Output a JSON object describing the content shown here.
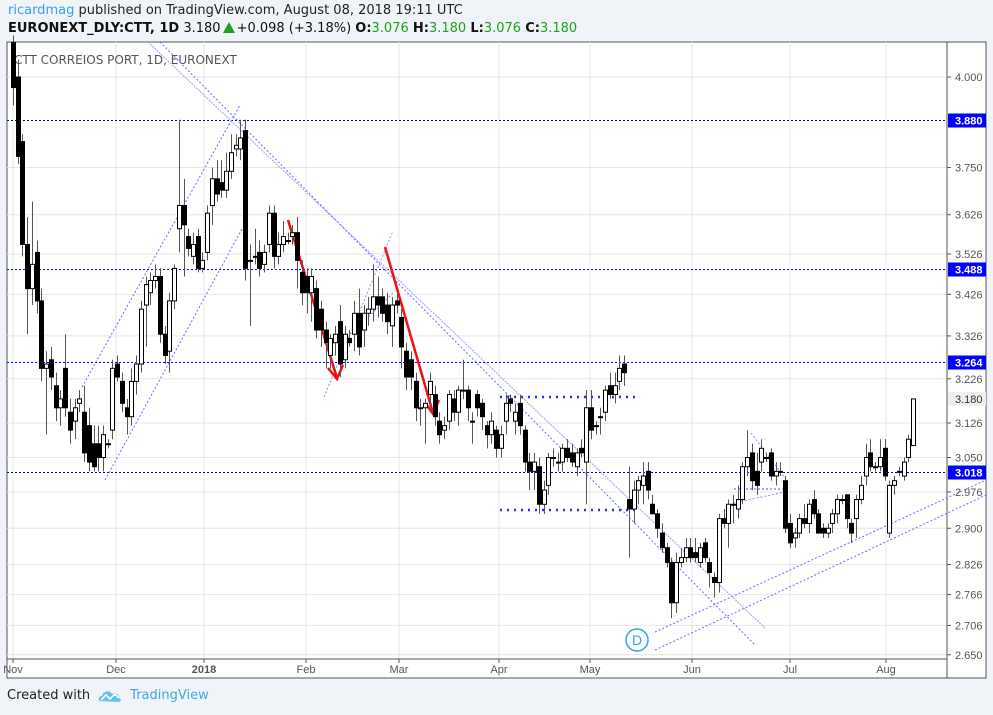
{
  "header": {
    "author": "ricardmag",
    "published": "published on TradingView.com, August 08, 2018 19:11 UTC",
    "symbol": "EURONEXT_DLY:CTT, 1D",
    "last": "3.180",
    "change": "+0.098 (+3.18%)",
    "o_label": "O:",
    "o": "3.076",
    "h_label": "H:",
    "h": "3.180",
    "l_label": "L:",
    "l": "3.076",
    "c_label": "C:",
    "c": "3.180",
    "up_color": "#1fa31f"
  },
  "footer": {
    "created_with": "Created with",
    "brand": "TradingView",
    "brand_icon": "tradingview-cloud-logo"
  },
  "chart_data": {
    "type": "candlestick",
    "title": "CTT CORREIOS PORT, 1D, EURONEXT",
    "y_scale": "log",
    "ylim": [
      2.642,
      4.101
    ],
    "grid": true,
    "y_ticks": [
      "4.000",
      "3.750",
      "3.626",
      "3.526",
      "3.426",
      "3.326",
      "3.226",
      "3.126",
      "3.050",
      "2.976",
      "2.900",
      "2.826",
      "2.766",
      "2.706",
      "2.650"
    ],
    "y_tick_values": [
      4.0,
      3.75,
      3.626,
      3.526,
      3.426,
      3.326,
      3.226,
      3.126,
      3.05,
      2.976,
      2.9,
      2.826,
      2.766,
      2.706,
      2.65
    ],
    "x_ticks": [
      "Nov",
      "Dec",
      "2018",
      "Feb",
      "Mar",
      "Apr",
      "May",
      "Jun",
      "Jul",
      "Aug"
    ],
    "levels": [
      {
        "value": 3.88,
        "label": "3.880"
      },
      {
        "value": 3.488,
        "label": "3.488"
      },
      {
        "value": 3.264,
        "label": "3.264"
      },
      {
        "value": 3.018,
        "label": "3.018"
      }
    ],
    "last_price": {
      "value": 3.18,
      "label": "3.180"
    },
    "level_color": "#0000ff",
    "annotation_marker": "D",
    "ohlc": [
      [
        4.1,
        4.12,
        3.92,
        3.97
      ],
      [
        4.0,
        4.05,
        3.76,
        3.78
      ],
      [
        3.82,
        3.84,
        3.52,
        3.55
      ],
      [
        3.55,
        3.62,
        3.33,
        3.44
      ],
      [
        3.44,
        3.66,
        3.4,
        3.5
      ],
      [
        3.53,
        3.56,
        3.38,
        3.41
      ],
      [
        3.41,
        3.44,
        3.22,
        3.25
      ],
      [
        3.25,
        3.29,
        3.1,
        3.26
      ],
      [
        3.27,
        3.3,
        3.2,
        3.23
      ],
      [
        3.21,
        3.24,
        3.13,
        3.16
      ],
      [
        3.16,
        3.2,
        3.12,
        3.18
      ],
      [
        3.25,
        3.33,
        3.14,
        3.16
      ],
      [
        3.15,
        3.18,
        3.08,
        3.11
      ],
      [
        3.13,
        3.18,
        3.09,
        3.16
      ],
      [
        3.17,
        3.2,
        3.15,
        3.18
      ],
      [
        3.15,
        3.21,
        3.04,
        3.06
      ],
      [
        3.12,
        3.16,
        3.02,
        3.04
      ],
      [
        3.08,
        3.12,
        3.02,
        3.03
      ],
      [
        3.08,
        3.12,
        3.02,
        3.05
      ],
      [
        3.05,
        3.12,
        3.02,
        3.1
      ],
      [
        3.08,
        3.09,
        3.07,
        3.08
      ],
      [
        3.11,
        3.27,
        3.09,
        3.25
      ],
      [
        3.26,
        3.28,
        3.22,
        3.23
      ],
      [
        3.22,
        3.24,
        3.15,
        3.17
      ],
      [
        3.16,
        3.18,
        3.1,
        3.14
      ],
      [
        3.14,
        3.25,
        3.12,
        3.22
      ],
      [
        3.22,
        3.28,
        3.19,
        3.26
      ],
      [
        3.26,
        3.41,
        3.24,
        3.39
      ],
      [
        3.4,
        3.47,
        3.3,
        3.45
      ],
      [
        3.43,
        3.48,
        3.4,
        3.46
      ],
      [
        3.46,
        3.5,
        3.44,
        3.47
      ],
      [
        3.47,
        3.49,
        3.31,
        3.33
      ],
      [
        3.33,
        3.35,
        3.26,
        3.28
      ],
      [
        3.29,
        3.43,
        3.24,
        3.41
      ],
      [
        3.41,
        3.5,
        3.39,
        3.49
      ],
      [
        3.59,
        3.88,
        3.53,
        3.65
      ],
      [
        3.65,
        3.72,
        3.47,
        3.6
      ],
      [
        3.57,
        3.59,
        3.52,
        3.54
      ],
      [
        3.52,
        3.58,
        3.5,
        3.55
      ],
      [
        3.57,
        3.59,
        3.48,
        3.49
      ],
      [
        3.49,
        3.53,
        3.48,
        3.51
      ],
      [
        3.53,
        3.65,
        3.51,
        3.63
      ],
      [
        3.65,
        3.75,
        3.6,
        3.72
      ],
      [
        3.72,
        3.77,
        3.66,
        3.68
      ],
      [
        3.71,
        3.77,
        3.67,
        3.69
      ],
      [
        3.69,
        3.79,
        3.67,
        3.74
      ],
      [
        3.74,
        3.84,
        3.72,
        3.79
      ],
      [
        3.8,
        3.84,
        3.78,
        3.81
      ],
      [
        3.8,
        3.88,
        3.77,
        3.83
      ],
      [
        3.85,
        3.88,
        3.46,
        3.49
      ],
      [
        3.51,
        3.55,
        3.35,
        3.51
      ],
      [
        3.52,
        3.59,
        3.5,
        3.52
      ],
      [
        3.53,
        3.56,
        3.47,
        3.49
      ],
      [
        3.5,
        3.55,
        3.48,
        3.53
      ],
      [
        3.55,
        3.65,
        3.53,
        3.63
      ],
      [
        3.63,
        3.65,
        3.49,
        3.52
      ],
      [
        3.52,
        3.58,
        3.5,
        3.55
      ],
      [
        3.55,
        3.61,
        3.53,
        3.57
      ],
      [
        3.56,
        3.58,
        3.55,
        3.56
      ],
      [
        3.57,
        3.6,
        3.55,
        3.58
      ],
      [
        3.58,
        3.62,
        3.44,
        3.51
      ],
      [
        3.48,
        3.51,
        3.4,
        3.43
      ],
      [
        3.47,
        3.49,
        3.38,
        3.43
      ],
      [
        3.43,
        3.49,
        3.36,
        3.47
      ],
      [
        3.44,
        3.46,
        3.32,
        3.34
      ],
      [
        3.39,
        3.41,
        3.3,
        3.34
      ],
      [
        3.34,
        3.36,
        3.25,
        3.31
      ],
      [
        3.28,
        3.33,
        3.25,
        3.32
      ],
      [
        3.31,
        3.35,
        3.28,
        3.33
      ],
      [
        3.36,
        3.4,
        3.23,
        3.26
      ],
      [
        3.27,
        3.35,
        3.25,
        3.33
      ],
      [
        3.32,
        3.34,
        3.3,
        3.31
      ],
      [
        3.33,
        3.41,
        3.29,
        3.38
      ],
      [
        3.38,
        3.44,
        3.28,
        3.3
      ],
      [
        3.34,
        3.4,
        3.3,
        3.38
      ],
      [
        3.38,
        3.42,
        3.35,
        3.39
      ],
      [
        3.39,
        3.5,
        3.36,
        3.42
      ],
      [
        3.42,
        3.47,
        3.37,
        3.4
      ],
      [
        3.42,
        3.44,
        3.36,
        3.38
      ],
      [
        3.4,
        3.43,
        3.33,
        3.36
      ],
      [
        3.35,
        3.42,
        3.3,
        3.4
      ],
      [
        3.41,
        3.43,
        3.38,
        3.4
      ],
      [
        3.37,
        3.39,
        3.25,
        3.3
      ],
      [
        3.29,
        3.31,
        3.2,
        3.23
      ],
      [
        3.27,
        3.29,
        3.2,
        3.23
      ],
      [
        3.22,
        3.24,
        3.13,
        3.16
      ],
      [
        3.16,
        3.18,
        3.12,
        3.16
      ],
      [
        3.16,
        3.18,
        3.08,
        3.17
      ],
      [
        3.19,
        3.24,
        3.15,
        3.22
      ],
      [
        3.19,
        3.21,
        3.12,
        3.14
      ],
      [
        3.13,
        3.15,
        3.08,
        3.1
      ],
      [
        3.11,
        3.14,
        3.09,
        3.12
      ],
      [
        3.13,
        3.2,
        3.11,
        3.19
      ],
      [
        3.18,
        3.2,
        3.13,
        3.15
      ],
      [
        3.15,
        3.21,
        3.12,
        3.2
      ],
      [
        3.2,
        3.27,
        3.18,
        3.2
      ],
      [
        3.2,
        3.21,
        3.13,
        3.16
      ],
      [
        3.13,
        3.15,
        3.08,
        3.13
      ],
      [
        3.19,
        3.2,
        3.14,
        3.16
      ],
      [
        3.17,
        3.18,
        3.11,
        3.14
      ],
      [
        3.12,
        3.13,
        3.07,
        3.1
      ],
      [
        3.1,
        3.15,
        3.08,
        3.13
      ],
      [
        3.11,
        3.12,
        3.05,
        3.07
      ],
      [
        3.07,
        3.12,
        3.05,
        3.1
      ],
      [
        3.13,
        3.19,
        3.1,
        3.17
      ],
      [
        3.18,
        3.19,
        3.15,
        3.17
      ],
      [
        3.13,
        3.17,
        3.1,
        3.15
      ],
      [
        3.17,
        3.19,
        3.1,
        3.12
      ],
      [
        3.11,
        3.12,
        3.02,
        3.04
      ],
      [
        3.04,
        3.06,
        2.98,
        3.02
      ],
      [
        3.02,
        3.06,
        2.98,
        3.04
      ],
      [
        3.03,
        3.05,
        2.93,
        2.95
      ],
      [
        2.95,
        3.0,
        2.93,
        2.98
      ],
      [
        2.99,
        3.06,
        2.97,
        3.05
      ],
      [
        3.05,
        3.07,
        3.03,
        3.05
      ],
      [
        3.04,
        3.06,
        3.02,
        3.04
      ],
      [
        3.04,
        3.08,
        3.02,
        3.07
      ],
      [
        3.07,
        3.09,
        3.04,
        3.05
      ],
      [
        3.06,
        3.08,
        3.03,
        3.04
      ],
      [
        3.03,
        3.07,
        3.01,
        3.06
      ],
      [
        3.07,
        3.09,
        3.05,
        3.06
      ],
      [
        3.04,
        3.2,
        2.95,
        3.16
      ],
      [
        3.16,
        3.2,
        3.09,
        3.11
      ],
      [
        3.12,
        3.13,
        3.1,
        3.12
      ],
      [
        3.14,
        3.16,
        3.1,
        3.14
      ],
      [
        3.15,
        3.21,
        3.13,
        3.2
      ],
      [
        3.21,
        3.24,
        3.18,
        3.19
      ],
      [
        3.19,
        3.24,
        3.17,
        3.21
      ],
      [
        3.22,
        3.28,
        3.2,
        3.25
      ],
      [
        3.26,
        3.28,
        3.21,
        3.24
      ],
      [
        2.96,
        3.03,
        2.84,
        2.94
      ],
      [
        2.94,
        3.0,
        2.91,
        2.98
      ],
      [
        2.98,
        3.01,
        2.95,
        3.0
      ],
      [
        2.99,
        3.04,
        2.95,
        3.01
      ],
      [
        3.02,
        3.04,
        2.96,
        2.98
      ],
      [
        2.95,
        2.97,
        2.93,
        2.93
      ],
      [
        2.93,
        2.94,
        2.88,
        2.9
      ],
      [
        2.89,
        2.91,
        2.85,
        2.86
      ],
      [
        2.86,
        2.87,
        2.82,
        2.83
      ],
      [
        2.83,
        2.84,
        2.72,
        2.75
      ],
      [
        2.75,
        2.85,
        2.73,
        2.83
      ],
      [
        2.83,
        2.86,
        2.82,
        2.84
      ],
      [
        2.84,
        2.88,
        2.83,
        2.86
      ],
      [
        2.86,
        2.88,
        2.83,
        2.84
      ],
      [
        2.85,
        2.88,
        2.83,
        2.84
      ],
      [
        2.83,
        2.87,
        2.82,
        2.86
      ],
      [
        2.87,
        2.88,
        2.83,
        2.84
      ],
      [
        2.83,
        2.84,
        2.78,
        2.81
      ],
      [
        2.8,
        2.81,
        2.76,
        2.79
      ],
      [
        2.79,
        2.93,
        2.77,
        2.92
      ],
      [
        2.92,
        2.94,
        2.9,
        2.91
      ],
      [
        2.91,
        2.96,
        2.86,
        2.95
      ],
      [
        2.95,
        2.97,
        2.91,
        2.95
      ],
      [
        2.94,
        2.99,
        2.92,
        2.96
      ],
      [
        2.96,
        3.04,
        2.95,
        3.03
      ],
      [
        3.03,
        3.11,
        3.01,
        3.05
      ],
      [
        3.06,
        3.08,
        2.98,
        3.0
      ],
      [
        3.02,
        3.06,
        2.97,
        2.99
      ],
      [
        3.04,
        3.09,
        3.02,
        3.07
      ],
      [
        3.05,
        3.06,
        3.04,
        3.05
      ],
      [
        3.06,
        3.07,
        3.0,
        3.01
      ],
      [
        3.01,
        3.04,
        2.99,
        3.02
      ],
      [
        3.02,
        3.04,
        3.01,
        3.02
      ],
      [
        3.0,
        3.01,
        2.89,
        2.9
      ],
      [
        2.91,
        2.93,
        2.86,
        2.87
      ],
      [
        2.88,
        2.9,
        2.86,
        2.89
      ],
      [
        2.89,
        2.93,
        2.88,
        2.92
      ],
      [
        2.92,
        2.95,
        2.9,
        2.91
      ],
      [
        2.91,
        2.96,
        2.89,
        2.95
      ],
      [
        2.96,
        2.98,
        2.92,
        2.93
      ],
      [
        2.93,
        2.94,
        2.89,
        2.89
      ],
      [
        2.9,
        2.91,
        2.88,
        2.89
      ],
      [
        2.89,
        2.91,
        2.88,
        2.9
      ],
      [
        2.91,
        2.94,
        2.89,
        2.93
      ],
      [
        2.93,
        2.97,
        2.91,
        2.96
      ],
      [
        2.96,
        2.97,
        2.95,
        2.96
      ],
      [
        2.97,
        2.97,
        2.9,
        2.92
      ],
      [
        2.91,
        2.92,
        2.87,
        2.89
      ],
      [
        2.92,
        2.97,
        2.88,
        2.96
      ],
      [
        2.96,
        3.01,
        2.95,
        2.99
      ],
      [
        3.01,
        3.08,
        2.99,
        3.05
      ],
      [
        3.06,
        3.09,
        3.02,
        3.03
      ],
      [
        3.03,
        3.04,
        3.02,
        3.03
      ],
      [
        3.03,
        3.09,
        3.02,
        3.05
      ],
      [
        3.07,
        3.09,
        3.0,
        3.01
      ],
      [
        2.89,
        3.0,
        2.88,
        2.99
      ],
      [
        2.99,
        3.01,
        2.97,
        3.0
      ],
      [
        3.02,
        3.03,
        3.01,
        3.02
      ],
      [
        3.01,
        3.05,
        3.0,
        3.04
      ],
      [
        3.05,
        3.1,
        3.04,
        3.09
      ],
      [
        3.076,
        3.18,
        3.076,
        3.18
      ]
    ]
  }
}
